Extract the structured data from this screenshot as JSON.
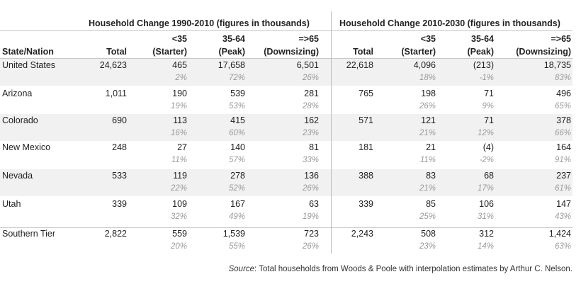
{
  "chart_data": {
    "type": "table",
    "group_headers": [
      "Household Change 1990-2010 (figures in thousands)",
      "Household Change 2010-2030 (figures in thousands)"
    ],
    "row_header": "State/Nation",
    "columns": [
      {
        "top": "",
        "bottom": "Total"
      },
      {
        "top": "<35",
        "bottom": "(Starter)"
      },
      {
        "top": "35-64",
        "bottom": "(Peak)"
      },
      {
        "top": "=>65",
        "bottom": "(Downsizing)"
      }
    ],
    "rows": [
      {
        "name": "United States",
        "p1": {
          "values": [
            "24,623",
            "465",
            "17,658",
            "6,501"
          ],
          "pcts": [
            "2%",
            "72%",
            "26%"
          ]
        },
        "p2": {
          "values": [
            "22,618",
            "4,096",
            "(213)",
            "18,735"
          ],
          "pcts": [
            "18%",
            "-1%",
            "83%"
          ]
        }
      },
      {
        "name": "Arizona",
        "p1": {
          "values": [
            "1,011",
            "190",
            "539",
            "281"
          ],
          "pcts": [
            "19%",
            "53%",
            "28%"
          ]
        },
        "p2": {
          "values": [
            "765",
            "198",
            "71",
            "496"
          ],
          "pcts": [
            "26%",
            "9%",
            "65%"
          ]
        }
      },
      {
        "name": "Colorado",
        "p1": {
          "values": [
            "690",
            "113",
            "415",
            "162"
          ],
          "pcts": [
            "16%",
            "60%",
            "23%"
          ]
        },
        "p2": {
          "values": [
            "571",
            "121",
            "71",
            "378"
          ],
          "pcts": [
            "21%",
            "12%",
            "66%"
          ]
        }
      },
      {
        "name": "New Mexico",
        "p1": {
          "values": [
            "248",
            "27",
            "140",
            "81"
          ],
          "pcts": [
            "11%",
            "57%",
            "33%"
          ]
        },
        "p2": {
          "values": [
            "181",
            "21",
            "(4)",
            "164"
          ],
          "pcts": [
            "11%",
            "-2%",
            "91%"
          ]
        }
      },
      {
        "name": "Nevada",
        "p1": {
          "values": [
            "533",
            "119",
            "278",
            "136"
          ],
          "pcts": [
            "22%",
            "52%",
            "26%"
          ]
        },
        "p2": {
          "values": [
            "388",
            "83",
            "68",
            "237"
          ],
          "pcts": [
            "21%",
            "17%",
            "61%"
          ]
        }
      },
      {
        "name": "Utah",
        "p1": {
          "values": [
            "339",
            "109",
            "167",
            "63"
          ],
          "pcts": [
            "32%",
            "49%",
            "19%"
          ]
        },
        "p2": {
          "values": [
            "339",
            "85",
            "106",
            "147"
          ],
          "pcts": [
            "25%",
            "31%",
            "43%"
          ]
        }
      },
      {
        "name": "Southern Tier",
        "p1": {
          "values": [
            "2,822",
            "559",
            "1,539",
            "723"
          ],
          "pcts": [
            "20%",
            "55%",
            "26%"
          ]
        },
        "p2": {
          "values": [
            "2,243",
            "508",
            "312",
            "1,424"
          ],
          "pcts": [
            "23%",
            "14%",
            "63%"
          ]
        }
      }
    ],
    "source_label": "Source",
    "source_text": ": Total households from Woods & Poole with interpolation estimates by Arthur C. Nelson."
  }
}
